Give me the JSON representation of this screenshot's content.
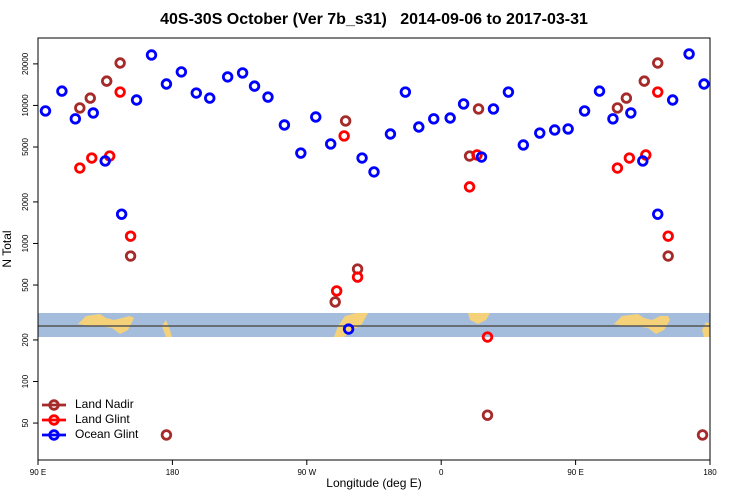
{
  "chart_data": {
    "type": "scatter",
    "title": "40S-30S October (Ver 7b_s31)   2014-09-06 to 2017-03-31",
    "x_label": "Longitude (deg E)",
    "y_label": "N Total",
    "log_y": true,
    "legend": "lower left",
    "xlim": [
      90,
      540
    ],
    "ylim": [
      27,
      30800
    ],
    "xticks": [
      {
        "value": 90,
        "label": "90 E"
      },
      {
        "value": 180,
        "label": "180"
      },
      {
        "value": 270,
        "label": "90 W"
      },
      {
        "value": 360,
        "label": "0"
      },
      {
        "value": 450,
        "label": "90 E"
      },
      {
        "value": 540,
        "label": "180"
      }
    ],
    "yticks": [
      50,
      100,
      200,
      500,
      1000,
      2000,
      5000,
      10000,
      20000
    ],
    "series": [
      {
        "name": "Land Nadir",
        "color": "#a52a2a",
        "x": [
          118,
          125,
          136,
          145,
          152,
          176,
          289,
          296,
          304,
          379,
          385,
          391,
          478,
          484,
          496,
          505,
          512,
          535
        ],
        "values": [
          9590,
          11300,
          15000,
          20300,
          811,
          41,
          377,
          7720,
          653,
          4300,
          9430,
          57,
          9590,
          11300,
          15000,
          20300,
          811,
          41
        ]
      },
      {
        "name": "Land Glint",
        "color": "#ff0000",
        "x": [
          118,
          126,
          138,
          145,
          152,
          290,
          295,
          304,
          379,
          384,
          391,
          478,
          486,
          497,
          505,
          512
        ],
        "values": [
          3520,
          4160,
          4300,
          12500,
          1130,
          453,
          6010,
          571,
          2570,
          4380,
          210,
          3520,
          4160,
          4380,
          12500,
          1130
        ]
      },
      {
        "name": "Ocean Glint",
        "color": "#0000ff",
        "x": [
          95,
          106,
          115,
          127,
          135,
          146,
          156,
          166,
          176,
          186,
          196,
          205,
          217,
          227,
          235,
          244,
          255,
          266,
          276,
          286,
          298,
          307,
          315,
          326,
          336,
          345,
          355,
          366,
          375,
          387,
          395,
          405,
          415,
          426,
          436,
          445,
          456,
          466,
          475,
          487,
          495,
          505,
          515,
          526,
          536
        ],
        "values": [
          9120,
          12700,
          8000,
          8820,
          3960,
          1630,
          10950,
          23200,
          14300,
          17500,
          12300,
          11300,
          16100,
          17200,
          13800,
          11500,
          7220,
          4520,
          8250,
          5260,
          240,
          4160,
          3300,
          6210,
          12500,
          6980,
          8000,
          8110,
          10250,
          4230,
          9430,
          12500,
          5170,
          6310,
          6640,
          6760,
          9120,
          12700,
          8000,
          8820,
          3960,
          1630,
          10950,
          23600,
          14300
        ]
      }
    ]
  }
}
